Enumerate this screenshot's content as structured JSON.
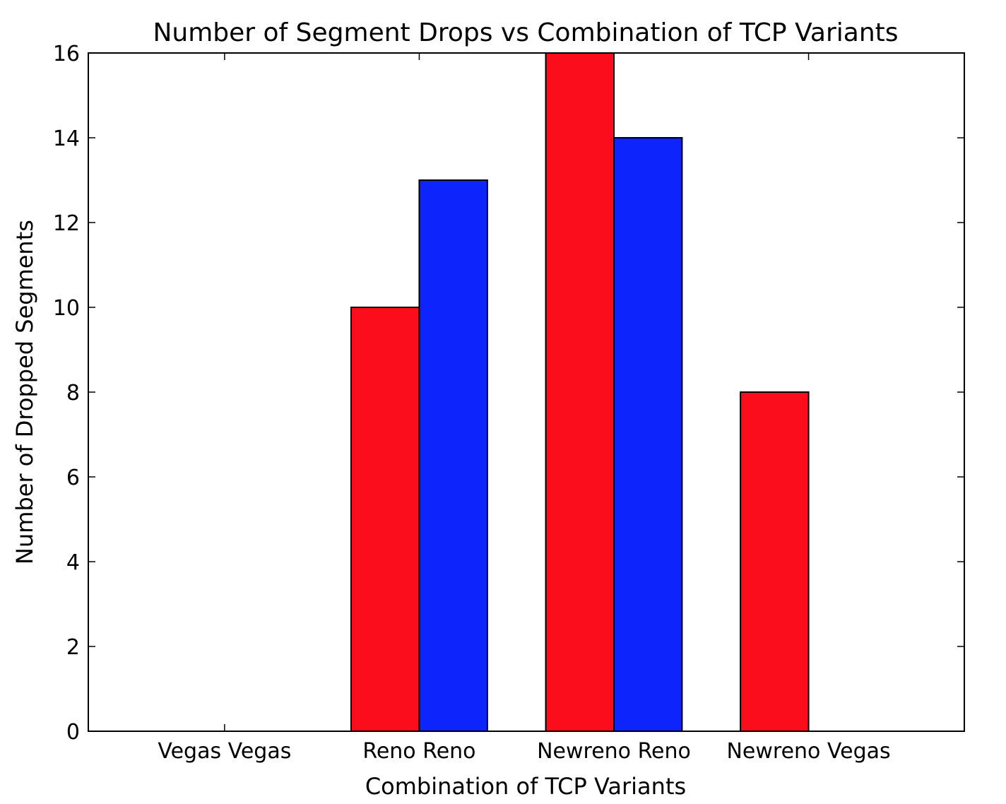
{
  "chart_data": {
    "type": "bar",
    "title": "Number of Segment Drops vs Combination of TCP Variants",
    "xlabel": "Combination of TCP Variants",
    "ylabel": "Number of Dropped Segments",
    "categories": [
      "Vegas Vegas",
      "Reno Reno",
      "Newreno Reno",
      "Newreno Vegas"
    ],
    "series": [
      {
        "values": [
          0,
          10,
          16,
          8
        ],
        "color": "#fc0d1b"
      },
      {
        "values": [
          0,
          13,
          14,
          0
        ],
        "color": "#0d24fc"
      }
    ],
    "ylim": [
      0,
      16
    ],
    "yticks": [
      0,
      2,
      4,
      6,
      8,
      10,
      12,
      14,
      16
    ],
    "xlim": [
      -0.7,
      3.8
    ],
    "grid": false,
    "legend": "none"
  }
}
